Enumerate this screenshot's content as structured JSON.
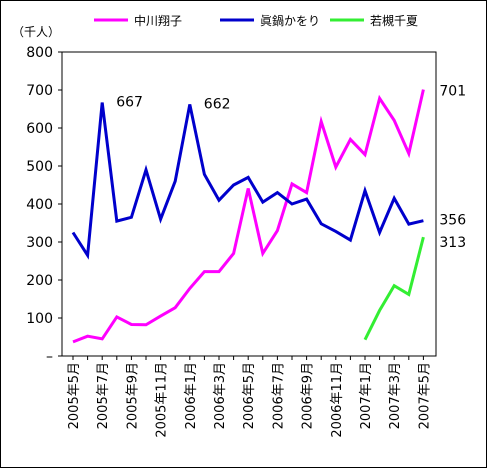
{
  "chart_data": {
    "type": "line",
    "unit_label": "（千人）",
    "ylim": [
      0,
      800
    ],
    "y_ticks": [
      {
        "value": 0,
        "label": "–"
      },
      {
        "value": 100,
        "label": "100"
      },
      {
        "value": 200,
        "label": "200"
      },
      {
        "value": 300,
        "label": "300"
      },
      {
        "value": 400,
        "label": "400"
      },
      {
        "value": 500,
        "label": "500"
      },
      {
        "value": 600,
        "label": "600"
      },
      {
        "value": 700,
        "label": "700"
      },
      {
        "value": 800,
        "label": "800"
      }
    ],
    "x_tick_labels": [
      {
        "index": 0,
        "label": "2005年5月"
      },
      {
        "index": 2,
        "label": "2005年7月"
      },
      {
        "index": 4,
        "label": "2005年9月"
      },
      {
        "index": 6,
        "label": "2005年11月"
      },
      {
        "index": 8,
        "label": "2006年1月"
      },
      {
        "index": 10,
        "label": "2006年3月"
      },
      {
        "index": 12,
        "label": "2006年5月"
      },
      {
        "index": 14,
        "label": "2006年7月"
      },
      {
        "index": 16,
        "label": "2006年9月"
      },
      {
        "index": 18,
        "label": "2006年11月"
      },
      {
        "index": 20,
        "label": "2007年1月"
      },
      {
        "index": 22,
        "label": "2007年3月"
      },
      {
        "index": 24,
        "label": "2007年5月"
      }
    ],
    "x_count": 25,
    "series": [
      {
        "name": "中川翔子",
        "color": "#ff00ff",
        "start_index": 0,
        "values": [
          37,
          52,
          45,
          103,
          83,
          82,
          105,
          127,
          178,
          222,
          222,
          270,
          441,
          270,
          330,
          453,
          430,
          617,
          497,
          570,
          530,
          678,
          620,
          533,
          701
        ]
      },
      {
        "name": "眞鍋かをり",
        "color": "#0000cc",
        "start_index": 0,
        "values": [
          325,
          265,
          667,
          355,
          365,
          490,
          360,
          460,
          662,
          478,
          410,
          450,
          470,
          405,
          430,
          400,
          413,
          348,
          328,
          305,
          435,
          325,
          415,
          347,
          356
        ]
      },
      {
        "name": "若槻千夏",
        "color": "#33ee33",
        "start_index": 20,
        "values": [
          43,
          120,
          185,
          162,
          313
        ]
      }
    ],
    "annotations": [
      {
        "text": "667",
        "series": 1,
        "index": 2
      },
      {
        "text": "662",
        "series": 1,
        "index": 8
      },
      {
        "text": "701",
        "series": 0,
        "index": 24
      },
      {
        "text": "356",
        "series": 1,
        "index": 24
      },
      {
        "text": "313",
        "series": 2,
        "index": 24
      }
    ],
    "legend_placement": "top"
  }
}
